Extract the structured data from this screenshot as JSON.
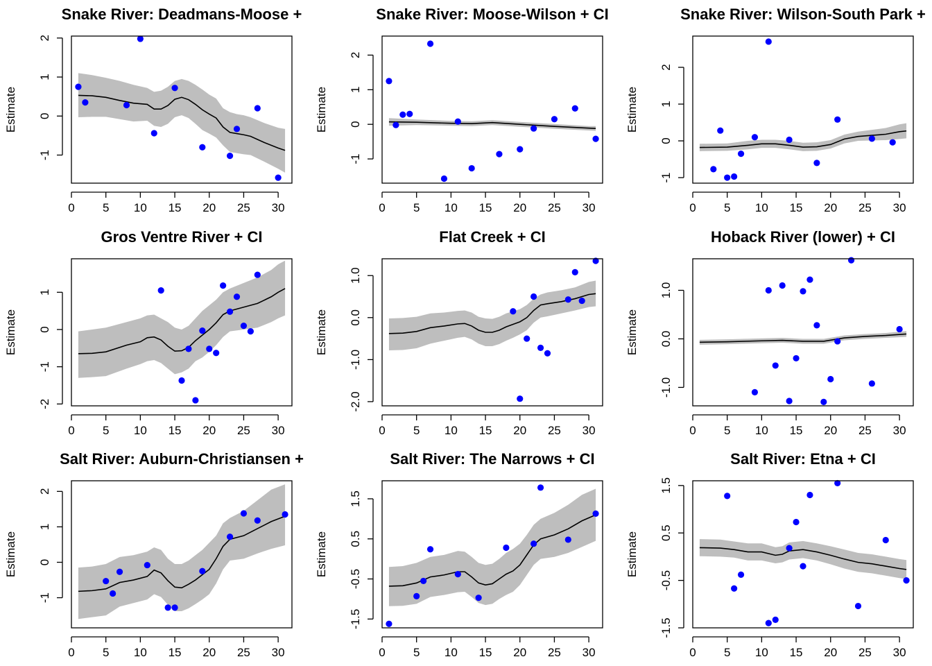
{
  "colors": {
    "ci_band": "#bebebe",
    "fit_line": "#000000",
    "points": "#0000ff",
    "axes": "#000000"
  },
  "chart_data": [
    {
      "type": "line",
      "title": "Snake River: Deadmans-Moose +",
      "ylabel": "Estimate",
      "xlim": [
        0,
        32
      ],
      "ylim": [
        -1.72,
        2.05
      ],
      "x_ticks": [
        0,
        5,
        10,
        15,
        20,
        25,
        30
      ],
      "y_ticks": [
        -1,
        0,
        1,
        2
      ],
      "fit": {
        "x": [
          1,
          3,
          5,
          7,
          9,
          11,
          12,
          13,
          14,
          15,
          16,
          17,
          18,
          19,
          20,
          21,
          22,
          23,
          24,
          25,
          26,
          28,
          30,
          31
        ],
        "y": [
          0.53,
          0.52,
          0.48,
          0.4,
          0.33,
          0.3,
          0.18,
          0.18,
          0.27,
          0.43,
          0.48,
          0.42,
          0.3,
          0.16,
          0.05,
          -0.05,
          -0.28,
          -0.42,
          -0.45,
          -0.48,
          -0.52,
          -0.68,
          -0.82,
          -0.88
        ]
      },
      "ci_upper": [
        1.1,
        1.05,
        0.98,
        0.9,
        0.8,
        0.72,
        0.62,
        0.65,
        0.75,
        0.9,
        0.95,
        0.9,
        0.8,
        0.68,
        0.55,
        0.45,
        0.2,
        0.1,
        0.05,
        0.02,
        -0.03,
        -0.18,
        -0.3,
        -0.33
      ],
      "ci_lower": [
        -0.03,
        -0.02,
        -0.02,
        -0.08,
        -0.14,
        -0.12,
        -0.25,
        -0.28,
        -0.2,
        -0.03,
        0.02,
        -0.05,
        -0.2,
        -0.36,
        -0.45,
        -0.55,
        -0.75,
        -0.92,
        -0.95,
        -0.98,
        -1.0,
        -1.17,
        -1.35,
        -1.45
      ],
      "points": {
        "x": [
          1,
          2,
          8,
          10,
          12,
          15,
          19,
          23,
          24,
          27,
          30
        ],
        "y": [
          0.75,
          0.35,
          0.28,
          1.98,
          -0.44,
          0.72,
          -0.8,
          -1.02,
          -0.33,
          0.2,
          -1.58
        ]
      }
    },
    {
      "type": "line",
      "title": "Snake River: Moose-Wilson + CI",
      "ylabel": "Estimate",
      "xlim": [
        0,
        32
      ],
      "ylim": [
        -1.7,
        2.55
      ],
      "x_ticks": [
        0,
        5,
        10,
        15,
        20,
        25,
        30
      ],
      "y_ticks": [
        -1,
        0,
        1,
        2
      ],
      "fit": {
        "x": [
          1,
          5,
          10,
          13,
          16,
          20,
          25,
          30,
          31
        ],
        "y": [
          0.07,
          0.06,
          0.03,
          0.02,
          0.05,
          0.0,
          -0.06,
          -0.11,
          -0.12
        ]
      },
      "ci_upper": [
        0.18,
        0.14,
        0.1,
        0.09,
        0.12,
        0.07,
        0.01,
        -0.05,
        -0.05
      ],
      "ci_lower": [
        -0.04,
        -0.02,
        -0.04,
        -0.05,
        -0.02,
        -0.07,
        -0.13,
        -0.18,
        -0.19
      ],
      "points": {
        "x": [
          1,
          2,
          3,
          4,
          7,
          9,
          11,
          13,
          17,
          20,
          22,
          25,
          28,
          31
        ],
        "y": [
          1.25,
          -0.02,
          0.28,
          0.3,
          2.33,
          -1.57,
          0.08,
          -1.27,
          -0.86,
          -0.72,
          -0.12,
          0.15,
          0.46,
          -0.42
        ]
      }
    },
    {
      "type": "line",
      "title": "Snake River: Wilson-South Park +",
      "ylabel": "Estimate",
      "xlim": [
        0,
        32
      ],
      "ylim": [
        -1.15,
        2.85
      ],
      "x_ticks": [
        0,
        5,
        10,
        15,
        20,
        25,
        30
      ],
      "y_ticks": [
        -1,
        0,
        1,
        2
      ],
      "fit": {
        "x": [
          1,
          5,
          8,
          10,
          12,
          14,
          16,
          18,
          20,
          22,
          24,
          26,
          28,
          30,
          31
        ],
        "y": [
          -0.18,
          -0.17,
          -0.12,
          -0.08,
          -0.08,
          -0.12,
          -0.17,
          -0.16,
          -0.1,
          0.05,
          0.12,
          0.15,
          0.18,
          0.25,
          0.27
        ]
      },
      "ci_upper": [
        -0.08,
        -0.07,
        0.0,
        0.03,
        0.03,
        0.0,
        -0.05,
        -0.04,
        0.02,
        0.17,
        0.25,
        0.3,
        0.35,
        0.45,
        0.48
      ],
      "ci_lower": [
        -0.28,
        -0.27,
        -0.23,
        -0.19,
        -0.19,
        -0.23,
        -0.28,
        -0.27,
        -0.21,
        -0.07,
        0.0,
        0.01,
        0.02,
        0.05,
        0.07
      ],
      "points": {
        "x": [
          3,
          4,
          5,
          6,
          7,
          9,
          11,
          14,
          18,
          21,
          26,
          29
        ],
        "y": [
          -0.77,
          0.28,
          -1.0,
          -0.97,
          -0.35,
          0.1,
          2.7,
          0.03,
          -0.6,
          0.58,
          0.06,
          -0.04
        ]
      }
    },
    {
      "type": "line",
      "title": "Gros Ventre River + CI",
      "ylabel": "Estimate",
      "xlim": [
        0,
        32
      ],
      "ylim": [
        -2.05,
        1.9
      ],
      "x_ticks": [
        0,
        5,
        10,
        15,
        20,
        25,
        30
      ],
      "y_ticks": [
        -2,
        -1,
        0,
        1
      ],
      "fit": {
        "x": [
          1,
          3,
          5,
          8,
          10,
          11,
          12,
          13,
          14,
          15,
          16,
          17,
          18,
          19,
          20,
          21,
          22,
          23,
          25,
          27,
          29,
          30,
          31
        ],
        "y": [
          -0.65,
          -0.64,
          -0.6,
          -0.42,
          -0.33,
          -0.22,
          -0.2,
          -0.28,
          -0.45,
          -0.58,
          -0.57,
          -0.48,
          -0.3,
          -0.15,
          0.0,
          0.18,
          0.4,
          0.5,
          0.6,
          0.7,
          0.88,
          1.0,
          1.1
        ]
      },
      "ci_upper": [
        -0.05,
        0.0,
        0.05,
        0.2,
        0.3,
        0.38,
        0.4,
        0.3,
        0.2,
        0.05,
        0.0,
        0.1,
        0.3,
        0.5,
        0.65,
        0.8,
        1.0,
        1.1,
        1.25,
        1.4,
        1.6,
        1.75,
        1.85
      ],
      "ci_lower": [
        -1.3,
        -1.28,
        -1.25,
        -1.05,
        -0.93,
        -0.85,
        -0.82,
        -0.9,
        -1.05,
        -1.2,
        -1.15,
        -1.05,
        -0.85,
        -0.75,
        -0.6,
        -0.42,
        -0.2,
        -0.05,
        0.0,
        0.05,
        0.2,
        0.3,
        0.38
      ],
      "points": {
        "x": [
          13,
          16,
          17,
          18,
          19,
          20,
          21,
          22,
          23,
          24,
          25,
          26,
          27
        ],
        "y": [
          1.05,
          -1.37,
          -0.52,
          -1.9,
          -0.03,
          -0.52,
          -0.63,
          1.18,
          0.48,
          0.88,
          0.1,
          -0.05,
          1.47
        ]
      }
    },
    {
      "type": "line",
      "title": "Flat Creek + CI",
      "ylabel": "Estimate",
      "xlim": [
        0,
        32
      ],
      "ylim": [
        -2.1,
        1.4
      ],
      "x_ticks": [
        0,
        5,
        10,
        15,
        20,
        25,
        30
      ],
      "y_ticks": [
        -2.0,
        -1.0,
        0.0,
        1.0
      ],
      "y_tick_labels": [
        "-2.0",
        "-1.0",
        "0.0",
        "1.0"
      ],
      "fit": {
        "x": [
          1,
          3,
          5,
          7,
          9,
          11,
          12,
          13,
          14,
          15,
          16,
          17,
          18,
          19,
          20,
          21,
          22,
          23,
          24,
          26,
          28,
          30,
          31
        ],
        "y": [
          -0.38,
          -0.37,
          -0.33,
          -0.24,
          -0.2,
          -0.15,
          -0.14,
          -0.2,
          -0.3,
          -0.35,
          -0.35,
          -0.3,
          -0.22,
          -0.16,
          -0.1,
          0.0,
          0.17,
          0.3,
          0.33,
          0.38,
          0.45,
          0.55,
          0.57
        ]
      },
      "ci_upper": [
        -0.02,
        -0.01,
        0.02,
        0.1,
        0.12,
        0.16,
        0.17,
        0.12,
        0.02,
        -0.02,
        -0.03,
        0.02,
        0.1,
        0.15,
        0.2,
        0.3,
        0.45,
        0.55,
        0.6,
        0.65,
        0.72,
        0.85,
        0.88
      ],
      "ci_lower": [
        -0.78,
        -0.77,
        -0.73,
        -0.62,
        -0.55,
        -0.48,
        -0.46,
        -0.52,
        -0.62,
        -0.68,
        -0.68,
        -0.63,
        -0.55,
        -0.48,
        -0.4,
        -0.3,
        -0.12,
        0.0,
        0.03,
        0.1,
        0.17,
        0.25,
        0.27
      ],
      "points": {
        "x": [
          19,
          20,
          21,
          22,
          23,
          24,
          27,
          28,
          29,
          31
        ],
        "y": [
          0.15,
          -1.93,
          -0.5,
          0.5,
          -0.72,
          -0.85,
          0.43,
          1.08,
          0.4,
          1.35
        ]
      }
    },
    {
      "type": "line",
      "title": "Hoback River (lower) + CI",
      "ylabel": "Estimate",
      "xlim": [
        0,
        32
      ],
      "ylim": [
        -1.38,
        1.65
      ],
      "x_ticks": [
        0,
        5,
        10,
        15,
        20,
        25,
        30
      ],
      "y_ticks": [
        -1.0,
        0.0,
        1.0
      ],
      "y_tick_labels": [
        "-1.0",
        "0.0",
        "1.0"
      ],
      "fit": {
        "x": [
          1,
          5,
          10,
          13,
          16,
          19,
          22,
          25,
          28,
          31
        ],
        "y": [
          -0.07,
          -0.06,
          -0.04,
          -0.03,
          -0.05,
          -0.05,
          0.02,
          0.05,
          0.07,
          0.1
        ]
      },
      "ci_upper": [
        -0.02,
        -0.01,
        0.01,
        0.02,
        0.0,
        0.0,
        0.07,
        0.1,
        0.12,
        0.16
      ],
      "ci_lower": [
        -0.12,
        -0.11,
        -0.09,
        -0.08,
        -0.1,
        -0.1,
        -0.03,
        0.0,
        0.02,
        0.04
      ],
      "points": {
        "x": [
          9,
          11,
          12,
          13,
          14,
          15,
          16,
          17,
          18,
          19,
          20,
          21,
          23,
          26,
          30
        ],
        "y": [
          -1.1,
          1.0,
          -0.55,
          1.1,
          -1.28,
          -0.4,
          0.98,
          1.22,
          0.28,
          -1.3,
          -0.83,
          -0.05,
          1.62,
          -0.92,
          0.2
        ]
      }
    },
    {
      "type": "line",
      "title": "Salt River: Auburn-Christiansen +",
      "ylabel": "Estimate",
      "xlim": [
        0,
        32
      ],
      "ylim": [
        -1.85,
        2.3
      ],
      "x_ticks": [
        0,
        5,
        10,
        15,
        20,
        25,
        30
      ],
      "y_ticks": [
        -1,
        0,
        1,
        2
      ],
      "fit": {
        "x": [
          1,
          3,
          5,
          7,
          9,
          11,
          12,
          13,
          14,
          15,
          16,
          17,
          18,
          19,
          20,
          21,
          22,
          23,
          25,
          27,
          29,
          31
        ],
        "y": [
          -0.82,
          -0.8,
          -0.75,
          -0.57,
          -0.5,
          -0.4,
          -0.22,
          -0.3,
          -0.52,
          -0.7,
          -0.72,
          -0.62,
          -0.5,
          -0.35,
          -0.2,
          0.1,
          0.45,
          0.65,
          0.75,
          0.95,
          1.15,
          1.3
        ]
      },
      "ci_upper": [
        -0.15,
        -0.12,
        -0.05,
        0.15,
        0.2,
        0.3,
        0.42,
        0.35,
        0.1,
        -0.05,
        -0.05,
        0.05,
        0.2,
        0.35,
        0.55,
        0.75,
        1.1,
        1.25,
        1.45,
        1.75,
        2.05,
        2.2
      ],
      "ci_lower": [
        -1.6,
        -1.55,
        -1.5,
        -1.25,
        -1.15,
        -1.05,
        -0.9,
        -0.98,
        -1.2,
        -1.38,
        -1.38,
        -1.3,
        -1.18,
        -1.05,
        -0.9,
        -0.6,
        -0.2,
        0.05,
        0.1,
        0.25,
        0.38,
        0.48
      ],
      "points": {
        "x": [
          5,
          6,
          7,
          11,
          14,
          15,
          19,
          23,
          25,
          27,
          31
        ],
        "y": [
          -0.53,
          -0.88,
          -0.27,
          -0.08,
          -1.28,
          -1.28,
          -0.25,
          0.72,
          1.38,
          1.18,
          1.35
        ]
      }
    },
    {
      "type": "line",
      "title": "Salt River: The Narrows + CI",
      "ylabel": "Estimate",
      "xlim": [
        0,
        32
      ],
      "ylim": [
        -1.72,
        1.95
      ],
      "x_ticks": [
        0,
        5,
        10,
        15,
        20,
        25,
        30
      ],
      "y_ticks": [
        -1.5,
        -0.5,
        0.5,
        1.5
      ],
      "y_tick_labels": [
        "-1.5",
        "-0.5",
        "0.5",
        "1.5"
      ],
      "fit": {
        "x": [
          1,
          3,
          5,
          7,
          9,
          11,
          12,
          13,
          14,
          15,
          16,
          17,
          18,
          19,
          20,
          21,
          22,
          23,
          25,
          27,
          29,
          31
        ],
        "y": [
          -0.68,
          -0.67,
          -0.6,
          -0.45,
          -0.4,
          -0.32,
          -0.32,
          -0.45,
          -0.6,
          -0.65,
          -0.62,
          -0.5,
          -0.38,
          -0.3,
          -0.15,
          0.1,
          0.35,
          0.5,
          0.6,
          0.75,
          0.95,
          1.1
        ]
      },
      "ci_upper": [
        -0.2,
        -0.18,
        -0.1,
        0.05,
        0.1,
        0.2,
        0.18,
        0.05,
        -0.1,
        -0.15,
        -0.12,
        0.0,
        0.15,
        0.25,
        0.38,
        0.6,
        0.85,
        1.0,
        1.15,
        1.35,
        1.6,
        1.75
      ],
      "ci_lower": [
        -1.18,
        -1.17,
        -1.12,
        -0.95,
        -0.9,
        -0.83,
        -0.82,
        -0.95,
        -1.1,
        -1.15,
        -1.12,
        -1.0,
        -0.9,
        -0.82,
        -0.65,
        -0.4,
        -0.15,
        0.0,
        0.05,
        0.15,
        0.3,
        0.45
      ],
      "points": {
        "x": [
          1,
          5,
          6,
          7,
          11,
          14,
          18,
          22,
          23,
          27,
          31
        ],
        "y": [
          -1.62,
          -0.93,
          -0.55,
          0.24,
          -0.38,
          -0.97,
          0.28,
          0.38,
          1.78,
          0.48,
          1.13
        ]
      }
    },
    {
      "type": "line",
      "title": "Salt River: Etna + CI",
      "ylabel": "Estimate",
      "xlim": [
        0,
        32
      ],
      "ylim": [
        -1.5,
        1.6
      ],
      "x_ticks": [
        0,
        5,
        10,
        15,
        20,
        25,
        30
      ],
      "y_ticks": [
        -1.5,
        -0.5,
        0.5,
        1.5
      ],
      "y_tick_labels": [
        "-1.5",
        "-0.5",
        "0.5",
        "1.5"
      ],
      "fit": {
        "x": [
          1,
          4,
          6,
          8,
          10,
          12,
          13,
          14,
          16,
          18,
          20,
          22,
          24,
          26,
          28,
          30,
          31
        ],
        "y": [
          0.19,
          0.18,
          0.15,
          0.1,
          0.1,
          0.03,
          0.05,
          0.12,
          0.15,
          0.1,
          0.03,
          -0.05,
          -0.12,
          -0.15,
          -0.2,
          -0.25,
          -0.27
        ]
      },
      "ci_upper": [
        0.37,
        0.36,
        0.32,
        0.28,
        0.28,
        0.2,
        0.22,
        0.3,
        0.33,
        0.28,
        0.22,
        0.15,
        0.08,
        0.05,
        0.0,
        -0.05,
        -0.07
      ],
      "ci_lower": [
        0.01,
        0.0,
        -0.02,
        -0.08,
        -0.08,
        -0.14,
        -0.12,
        -0.06,
        -0.03,
        -0.08,
        -0.16,
        -0.25,
        -0.32,
        -0.35,
        -0.4,
        -0.45,
        -0.47
      ],
      "points": {
        "x": [
          5,
          6,
          7,
          11,
          12,
          14,
          15,
          16,
          17,
          21,
          24,
          28,
          31
        ],
        "y": [
          1.28,
          -0.67,
          -0.38,
          -1.4,
          -1.33,
          0.18,
          0.73,
          -0.2,
          1.3,
          1.55,
          -1.04,
          0.35,
          -0.5
        ]
      }
    }
  ]
}
